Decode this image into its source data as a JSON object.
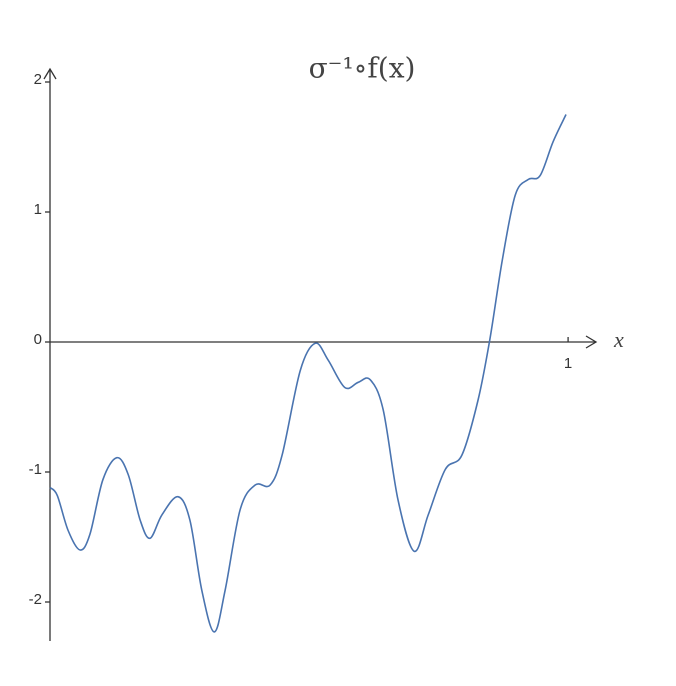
{
  "chart_data": {
    "type": "line",
    "title": "σ⁻¹∘f(x)",
    "x_label": "x",
    "xlim": [
      0,
      1.05
    ],
    "ylim": [
      -2.3,
      2.1
    ],
    "xticks": [
      1
    ],
    "yticks": [
      -2,
      -1,
      0,
      1,
      2
    ],
    "series": [
      {
        "color": "#4a74b0",
        "x": [
          0,
          0.014,
          0.035,
          0.058,
          0.077,
          0.102,
          0.129,
          0.151,
          0.174,
          0.193,
          0.216,
          0.247,
          0.27,
          0.293,
          0.317,
          0.338,
          0.367,
          0.396,
          0.425,
          0.448,
          0.483,
          0.512,
          0.537,
          0.569,
          0.595,
          0.618,
          0.643,
          0.672,
          0.703,
          0.73,
          0.763,
          0.795,
          0.826,
          0.849,
          0.873,
          0.898,
          0.923,
          0.946,
          0.971,
          0.996
        ],
        "values": [
          -1.12,
          -1.18,
          -1.45,
          -1.6,
          -1.48,
          -1.06,
          -0.89,
          -1.02,
          -1.37,
          -1.51,
          -1.33,
          -1.19,
          -1.37,
          -1.91,
          -2.23,
          -1.91,
          -1.29,
          -1.1,
          -1.1,
          -0.87,
          -0.22,
          -0.01,
          -0.14,
          -0.35,
          -0.31,
          -0.29,
          -0.52,
          -1.22,
          -1.61,
          -1.33,
          -0.98,
          -0.87,
          -0.45,
          0.02,
          0.63,
          1.13,
          1.25,
          1.28,
          1.54,
          1.75
        ]
      }
    ]
  }
}
